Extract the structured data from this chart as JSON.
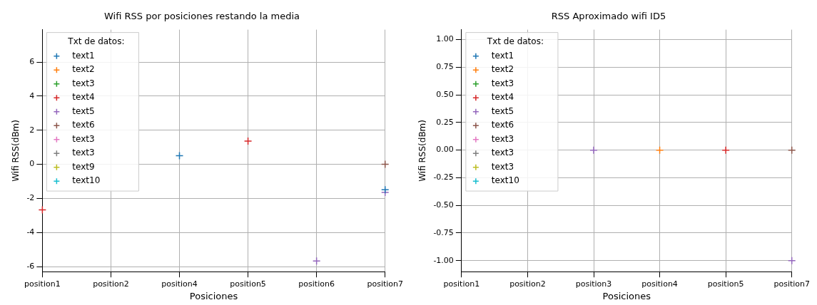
{
  "chart_data": [
    {
      "type": "scatter",
      "title": "Wifi RSS por posiciones restando la media",
      "xlabel": "Posiciones",
      "ylabel": "Wifi RSS(dBm)",
      "legend_title": "Txt de datos:",
      "legend": "top left",
      "grid": true,
      "marker": "cross",
      "categories": [
        "position1",
        "position2",
        "position4",
        "position5",
        "position6",
        "position7"
      ],
      "ylim": [
        -6.3,
        7.9
      ],
      "yticks": [
        -6,
        -4,
        -2,
        0,
        2,
        4,
        6
      ],
      "series": [
        {
          "name": "text1",
          "color": "#1f77b4",
          "values": [
            null,
            null,
            0.5,
            null,
            null,
            -1.49
          ]
        },
        {
          "name": "text2",
          "color": "#ff7f0e",
          "values": [
            null,
            null,
            null,
            null,
            null,
            null
          ]
        },
        {
          "name": "text3",
          "color": "#2ca02c",
          "values": [
            null,
            null,
            null,
            null,
            null,
            null
          ]
        },
        {
          "name": "text4",
          "color": "#d62728",
          "values": [
            -2.67,
            null,
            null,
            1.36,
            null,
            null
          ]
        },
        {
          "name": "text5",
          "color": "#9467bd",
          "values": [
            null,
            null,
            null,
            null,
            -5.68,
            -1.65
          ]
        },
        {
          "name": "text6",
          "color": "#8c564b",
          "values": [
            null,
            null,
            null,
            null,
            null,
            0
          ]
        },
        {
          "name": "text3",
          "color": "#e377c2",
          "values": [
            null,
            null,
            null,
            null,
            null,
            null
          ]
        },
        {
          "name": "text3",
          "color": "#7f7f7f",
          "values": [
            null,
            null,
            null,
            null,
            null,
            null
          ]
        },
        {
          "name": "text9",
          "color": "#bcbd22",
          "values": [
            null,
            null,
            null,
            null,
            null,
            null
          ]
        },
        {
          "name": "text10",
          "color": "#17becf",
          "values": [
            null,
            null,
            null,
            null,
            null,
            null
          ]
        }
      ]
    },
    {
      "type": "scatter",
      "title": "RSS Aproximado wifi ID5",
      "xlabel": "Posiciones",
      "ylabel": "Wifi RSS(dBm)",
      "legend_title": "Txt de datos:",
      "legend": "top left",
      "grid": true,
      "marker": "cross",
      "categories": [
        "position1",
        "position2",
        "position3",
        "position4",
        "position5",
        "position7"
      ],
      "ylim": [
        -1.1,
        1.09
      ],
      "yticks": [
        {
          "value": -1,
          "label": "-1.00"
        },
        {
          "value": -0.75,
          "label": "-0.75"
        },
        {
          "value": -0.5,
          "label": "-0.50"
        },
        {
          "value": -0.25,
          "label": "-0.25"
        },
        {
          "value": 0,
          "label": "0.00"
        },
        {
          "value": 0.25,
          "label": "0.25"
        },
        {
          "value": 0.5,
          "label": "0.50"
        },
        {
          "value": 0.75,
          "label": "0.75"
        },
        {
          "value": 1,
          "label": "1.00"
        }
      ],
      "series": [
        {
          "name": "text1",
          "color": "#1f77b4",
          "values": [
            null,
            null,
            null,
            null,
            null,
            null
          ]
        },
        {
          "name": "text2",
          "color": "#ff7f0e",
          "values": [
            null,
            null,
            null,
            0,
            null,
            null
          ]
        },
        {
          "name": "text3",
          "color": "#2ca02c",
          "values": [
            null,
            null,
            null,
            null,
            null,
            null
          ]
        },
        {
          "name": "text4",
          "color": "#d62728",
          "values": [
            null,
            null,
            null,
            null,
            0,
            null
          ]
        },
        {
          "name": "text5",
          "color": "#9467bd",
          "values": [
            null,
            null,
            0,
            null,
            null,
            -1
          ]
        },
        {
          "name": "text6",
          "color": "#8c564b",
          "values": [
            null,
            null,
            null,
            null,
            null,
            0
          ]
        },
        {
          "name": "text3",
          "color": "#e377c2",
          "values": [
            null,
            null,
            null,
            null,
            null,
            null
          ]
        },
        {
          "name": "text3",
          "color": "#7f7f7f",
          "values": [
            null,
            null,
            null,
            null,
            null,
            null
          ]
        },
        {
          "name": "text3",
          "color": "#bcbd22",
          "values": [
            null,
            null,
            null,
            null,
            null,
            null
          ]
        },
        {
          "name": "text10",
          "color": "#17becf",
          "values": [
            null,
            null,
            null,
            null,
            null,
            null
          ]
        }
      ]
    }
  ]
}
